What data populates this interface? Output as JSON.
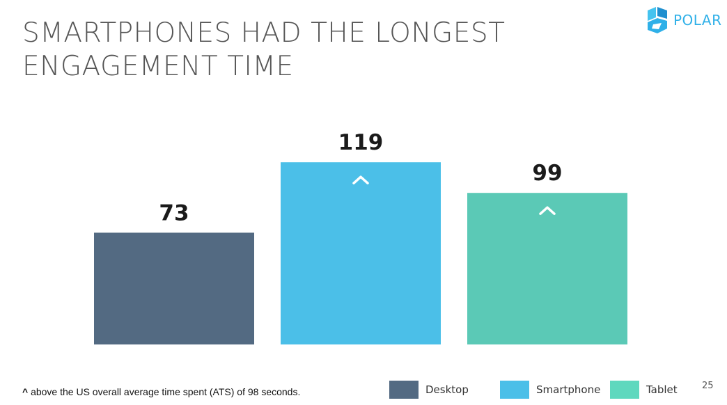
{
  "slide": {
    "title_line1": "SMARTPHONES HAD THE LONGEST",
    "title_line2": "ENGAGEMENT TIME",
    "brand": "POLAR",
    "footnote_mark": "^",
    "footnote_text": " above the US overall average time spent (ATS) of 98 seconds.",
    "page_number": "25"
  },
  "colors": {
    "title": "#555555",
    "brand": "#2fb0e8",
    "bar_label": "#1a1a1a",
    "caret": "#ffffff"
  },
  "chart_data": {
    "type": "bar",
    "categories": [
      "Desktop",
      "Smartphone",
      "Tablet"
    ],
    "values": [
      73,
      119,
      99
    ],
    "data_labels": [
      "73",
      "119",
      "99"
    ],
    "above_average_marker": [
      false,
      true,
      true
    ],
    "marker_symbol": "^",
    "colors": [
      "#536a82",
      "#4bbfe8",
      "#5bc9b6"
    ],
    "title": "SMARTPHONES HAD THE LONGEST ENGAGEMENT TIME",
    "xlabel": "",
    "ylabel": "",
    "ylim": [
      0,
      120
    ],
    "grid": false,
    "legend": {
      "placement": "bottom-right",
      "entries": [
        {
          "name": "Desktop",
          "color": "#536a82"
        },
        {
          "name": "Smartphone",
          "color": "#4bbfe8"
        },
        {
          "name": "Tablet",
          "color": "#5fd8be"
        }
      ]
    }
  }
}
